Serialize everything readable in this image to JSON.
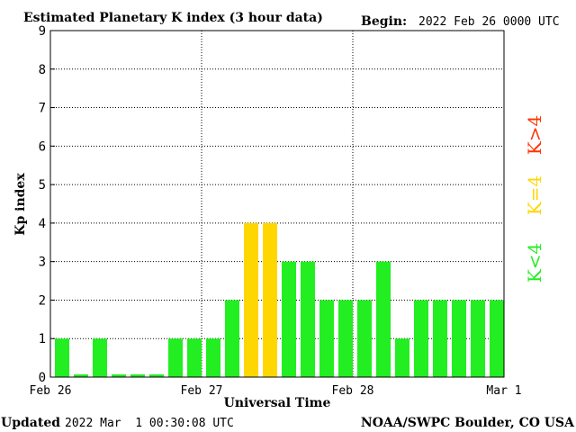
{
  "header": {
    "title": "Estimated Planetary K index (3 hour data)",
    "begin_label": "Begin:",
    "begin_value": "2022 Feb 26 0000 UTC"
  },
  "footer": {
    "updated_label": "Updated",
    "updated_value": "2022 Mar  1 00:30:08 UTC",
    "credit": "NOAA/SWPC Boulder, CO USA"
  },
  "legend": {
    "low": {
      "label": "K<4",
      "color": "#22ee22"
    },
    "mid": {
      "label": "K=4",
      "color": "#ffd700"
    },
    "high": {
      "label": "K>4",
      "color": "#ff3300"
    }
  },
  "chart_data": {
    "type": "bar",
    "title": "Estimated Planetary K index (3 hour data)",
    "xlabel": "Universal Time",
    "ylabel": "Kp index",
    "ylim": [
      0,
      9
    ],
    "yticks": [
      "0",
      "1",
      "2",
      "3",
      "4",
      "5",
      "6",
      "7",
      "8",
      "9"
    ],
    "xticks": [
      "Feb 26",
      "Feb 27",
      "Feb 28",
      "Mar 1"
    ],
    "grid": true,
    "values": [
      1,
      0,
      1,
      0,
      0,
      0,
      1,
      1,
      1,
      2,
      4,
      4,
      3,
      3,
      2,
      2,
      2,
      3,
      1,
      2,
      2,
      2,
      2,
      2
    ],
    "colors": {
      "below4": "#22ee22",
      "equal4": "#ffd700",
      "above4": "#ff3300"
    }
  }
}
